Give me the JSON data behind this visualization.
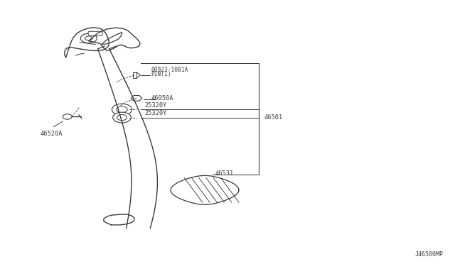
{
  "background_color": "#ffffff",
  "line_color": "#3a3a3a",
  "text_color": "#3a3a3a",
  "footer_text": "J46500MP",
  "label_46501": "46501",
  "label_pin_line1": "00923-1081A",
  "label_pin_line2": "PIN(1)",
  "label_46050A": "46050A",
  "label_25320Y_1": "25320Y",
  "label_25320Y_2": "25320Y",
  "label_46531": "46531",
  "label_46520A": "46520A"
}
